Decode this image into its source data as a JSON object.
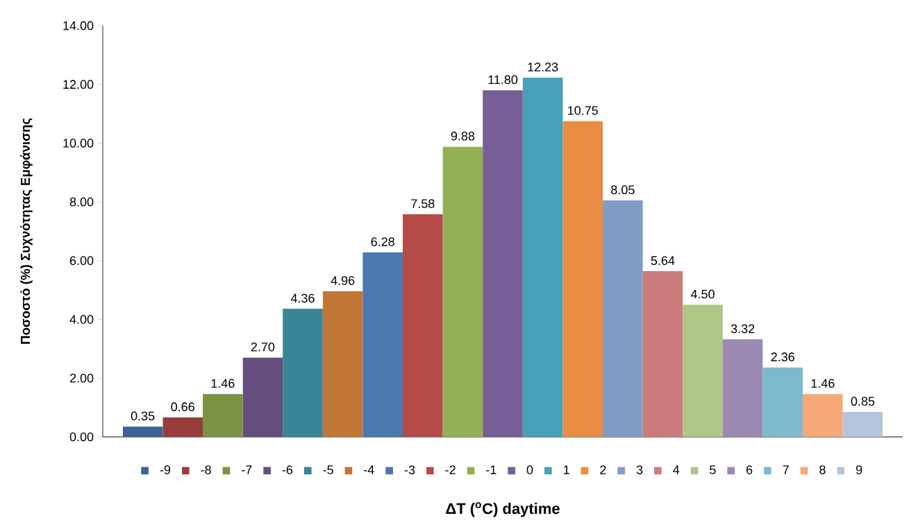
{
  "chart_data": {
    "type": "bar",
    "xlabel": "ΔT ($^{o}$C) daytime",
    "ylabel": "Ποσοστό (%) Συχνότητας Εμφάνισης",
    "categories": [
      null
    ],
    "ylim": [
      0,
      14
    ],
    "yticks": [
      {
        "value": 0,
        "label": "0.00"
      },
      {
        "value": 2,
        "label": "2.00"
      },
      {
        "value": 4,
        "label": "4.00"
      },
      {
        "value": 6,
        "label": "6.00"
      },
      {
        "value": 8,
        "label": "8.00"
      },
      {
        "value": 10,
        "label": "10.00"
      },
      {
        "value": 12,
        "label": "12.00"
      },
      {
        "value": 14,
        "label": "14.00"
      }
    ],
    "legend": "bottom",
    "series": [
      {
        "name": "-9",
        "color": "#3a6396",
        "values": [
          0.35
        ],
        "value_labels": [
          "0.35"
        ]
      },
      {
        "name": "-8",
        "color": "#973c3b",
        "values": [
          0.66
        ],
        "value_labels": [
          "0.66"
        ]
      },
      {
        "name": "-7",
        "color": "#7a9342",
        "values": [
          1.46
        ],
        "value_labels": [
          "1.46"
        ]
      },
      {
        "name": "-6",
        "color": "#654e7e",
        "values": [
          2.7
        ],
        "value_labels": [
          "2.70"
        ]
      },
      {
        "name": "-5",
        "color": "#398598",
        "values": [
          4.36
        ],
        "value_labels": [
          "4.36"
        ]
      },
      {
        "name": "-4",
        "color": "#c27636",
        "values": [
          4.96
        ],
        "value_labels": [
          "4.96"
        ]
      },
      {
        "name": "-3",
        "color": "#4a78b0",
        "values": [
          6.28
        ],
        "value_labels": [
          "6.28"
        ]
      },
      {
        "name": "-2",
        "color": "#b44b49",
        "values": [
          7.58
        ],
        "value_labels": [
          "7.58"
        ]
      },
      {
        "name": "-1",
        "color": "#93b055",
        "values": [
          9.88
        ],
        "value_labels": [
          "9.88"
        ]
      },
      {
        "name": "0",
        "color": "#775e96",
        "values": [
          11.8
        ],
        "value_labels": [
          "11.80"
        ]
      },
      {
        "name": "1",
        "color": "#47a1b8",
        "values": [
          12.23
        ],
        "value_labels": [
          "12.23"
        ]
      },
      {
        "name": "2",
        "color": "#e88d43",
        "values": [
          10.75
        ],
        "value_labels": [
          "10.75"
        ]
      },
      {
        "name": "3",
        "color": "#7f9cc7",
        "values": [
          8.05
        ],
        "value_labels": [
          "8.05"
        ]
      },
      {
        "name": "4",
        "color": "#ca7d7c",
        "values": [
          5.64
        ],
        "value_labels": [
          "5.64"
        ]
      },
      {
        "name": "5",
        "color": "#aec686",
        "values": [
          4.5
        ],
        "value_labels": [
          "4.50"
        ]
      },
      {
        "name": "6",
        "color": "#9c89b2",
        "values": [
          3.32
        ],
        "value_labels": [
          "3.32"
        ]
      },
      {
        "name": "7",
        "color": "#7dbacd",
        "values": [
          2.36
        ],
        "value_labels": [
          "2.36"
        ]
      },
      {
        "name": "8",
        "color": "#f5a977",
        "values": [
          1.46
        ],
        "value_labels": [
          "1.46"
        ]
      },
      {
        "name": "9",
        "color": "#b5c3dc",
        "values": [
          0.85
        ],
        "value_labels": [
          "0.85"
        ]
      }
    ]
  }
}
